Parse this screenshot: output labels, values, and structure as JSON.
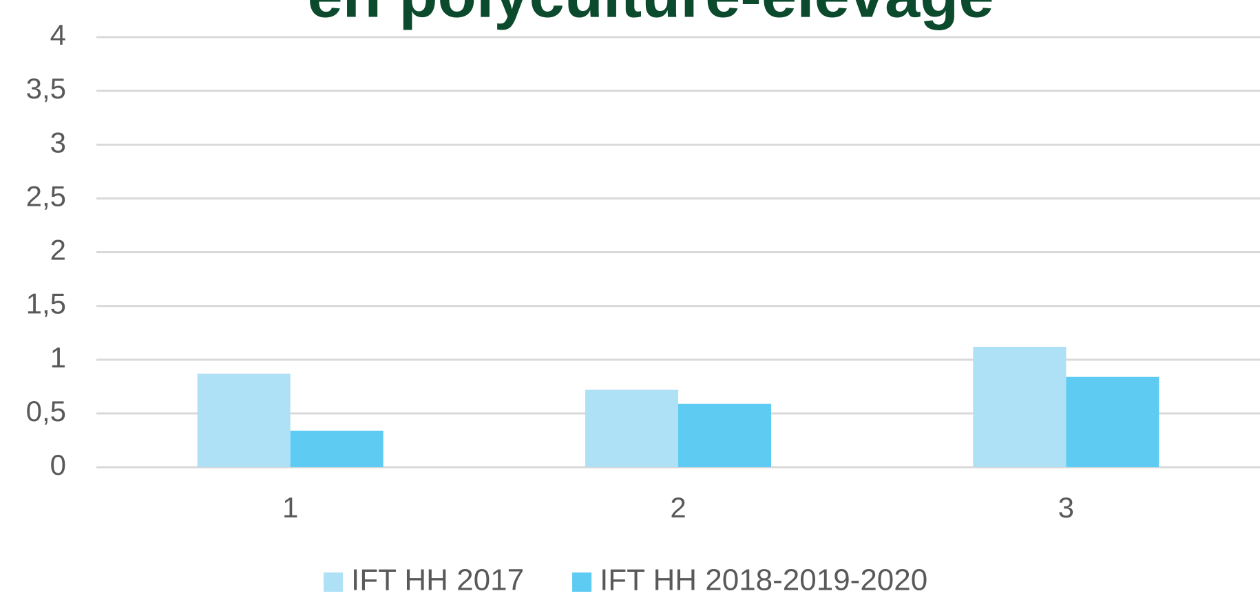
{
  "chart_data": {
    "type": "bar",
    "title": "en polyculture-élevage",
    "categories": [
      "1",
      "2",
      "3"
    ],
    "series": [
      {
        "name": "IFT HH 2017",
        "color": "#aee0f6",
        "values": [
          0.87,
          0.72,
          1.12
        ]
      },
      {
        "name": "IFT HH 2018-2019-2020",
        "color": "#5ecbf2",
        "values": [
          0.34,
          0.59,
          0.84
        ]
      }
    ],
    "ylim": [
      0,
      4
    ],
    "yticks": [
      0,
      {
        "value": 0.5,
        "label": "0,5"
      },
      1,
      {
        "value": 1.5,
        "label": "1,5"
      },
      2,
      {
        "value": 2.5,
        "label": "2,5"
      },
      3,
      {
        "value": 3.5,
        "label": "3,5"
      },
      4
    ],
    "grid": true,
    "legend": "bottom"
  }
}
